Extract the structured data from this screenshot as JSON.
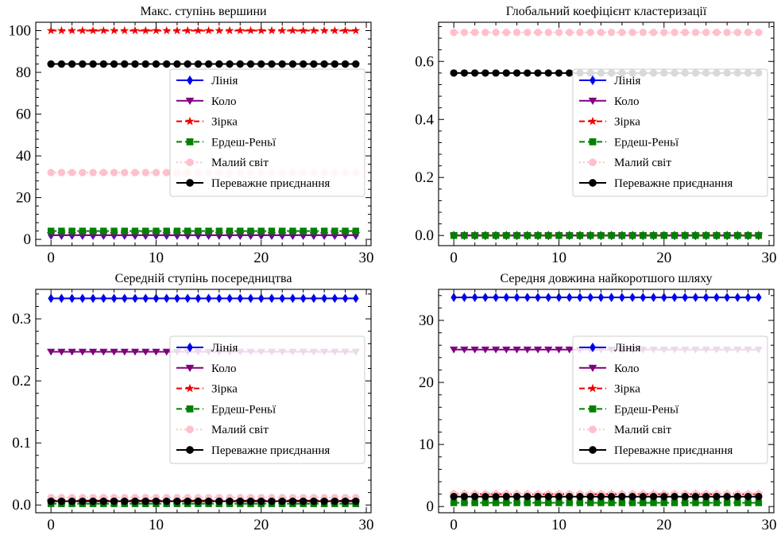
{
  "chart_data": [
    {
      "type": "line",
      "title": "Макс. ступінь вершини",
      "xlabel": "",
      "ylabel": "",
      "xlim": [
        -1.45,
        30.45
      ],
      "ylim": [
        -3,
        104
      ],
      "xticks": [
        0,
        10,
        20,
        30
      ],
      "yticks": [
        0,
        20,
        40,
        60,
        80,
        100
      ],
      "ytick_labels": [
        "0",
        "20",
        "40",
        "60",
        "80",
        "100"
      ],
      "x": {
        "start": 0,
        "end": 29,
        "step": 1
      },
      "legend_position": "center-right",
      "series": [
        {
          "name": "Лінія",
          "constant": 2
        },
        {
          "name": "Коло",
          "constant": 2
        },
        {
          "name": "Зірка",
          "constant": 100
        },
        {
          "name": "Ердеш-Реньї",
          "constant": 4
        },
        {
          "name": "Малий світ",
          "constant": 32
        },
        {
          "name": "Переважне приєднання",
          "constant": 84
        }
      ]
    },
    {
      "type": "line",
      "title": "Глобальний коефіцієнт кластеризації",
      "xlabel": "",
      "ylabel": "",
      "xlim": [
        -1.45,
        30.45
      ],
      "ylim": [
        -0.035,
        0.735
      ],
      "xticks": [
        0,
        10,
        20,
        30
      ],
      "yticks": [
        0,
        0.2,
        0.4,
        0.6
      ],
      "ytick_labels": [
        "0.0",
        "0.2",
        "0.4",
        "0.6"
      ],
      "x": {
        "start": 0,
        "end": 29,
        "step": 1
      },
      "legend_position": "center-right",
      "series": [
        {
          "name": "Лінія",
          "constant": 0
        },
        {
          "name": "Коло",
          "constant": 0
        },
        {
          "name": "Зірка",
          "constant": 0
        },
        {
          "name": "Ердеш-Реньї",
          "constant": 0
        },
        {
          "name": "Малий світ",
          "constant": 0.7
        },
        {
          "name": "Переважне приєднання",
          "constant": 0.56
        }
      ]
    },
    {
      "type": "line",
      "title": "Середній ступінь посередництва",
      "xlabel": "",
      "ylabel": "",
      "xlim": [
        -1.45,
        30.45
      ],
      "ylim": [
        -0.0125,
        0.3475
      ],
      "xticks": [
        0,
        10,
        20,
        30
      ],
      "yticks": [
        0,
        0.1,
        0.2,
        0.3
      ],
      "ytick_labels": [
        "0.0",
        "0.1",
        "0.2",
        "0.3"
      ],
      "x": {
        "start": 0,
        "end": 29,
        "step": 1
      },
      "legend_position": "center-right",
      "series": [
        {
          "name": "Лінія",
          "constant": 0.333
        },
        {
          "name": "Коло",
          "constant": 0.247
        },
        {
          "name": "Зірка",
          "constant": 0.007
        },
        {
          "name": "Ердеш-Реньї",
          "constant": 0.002
        },
        {
          "name": "Малий світ",
          "constant": 0.012
        },
        {
          "name": "Переважне приєднання",
          "constant": 0.006
        }
      ]
    },
    {
      "type": "line",
      "title": "Середня довжина найкоротшого шляху",
      "xlabel": "",
      "ylabel": "",
      "xlim": [
        -1.45,
        30.45
      ],
      "ylim": [
        -1.0,
        35.0
      ],
      "xticks": [
        0,
        10,
        20,
        30
      ],
      "yticks": [
        0,
        10,
        20,
        30
      ],
      "ytick_labels": [
        "0",
        "10",
        "20",
        "30"
      ],
      "x": {
        "start": 0,
        "end": 29,
        "step": 1
      },
      "legend_position": "center-right",
      "series": [
        {
          "name": "Лінія",
          "constant": 33.7
        },
        {
          "name": "Коло",
          "constant": 25.3
        },
        {
          "name": "Зірка",
          "constant": 2.0
        },
        {
          "name": "Ердеш-Реньї",
          "constant": 0.6
        },
        {
          "name": "Малий світ",
          "constant": 2.0
        },
        {
          "name": "Переважне приєднання",
          "constant": 1.6
        }
      ]
    }
  ],
  "series_styles": [
    {
      "color": "#0000ee",
      "marker": "diamond",
      "dash": "solid"
    },
    {
      "color": "#800080",
      "marker": "triangle-down",
      "dash": "solid"
    },
    {
      "color": "#ee0000",
      "marker": "star",
      "dash": "dashed"
    },
    {
      "color": "#008000",
      "marker": "square",
      "dash": "dashed"
    },
    {
      "color": "#ffc0cb",
      "marker": "circle",
      "dash": "dotted"
    },
    {
      "color": "#000000",
      "marker": "circle",
      "dash": "solid"
    }
  ]
}
